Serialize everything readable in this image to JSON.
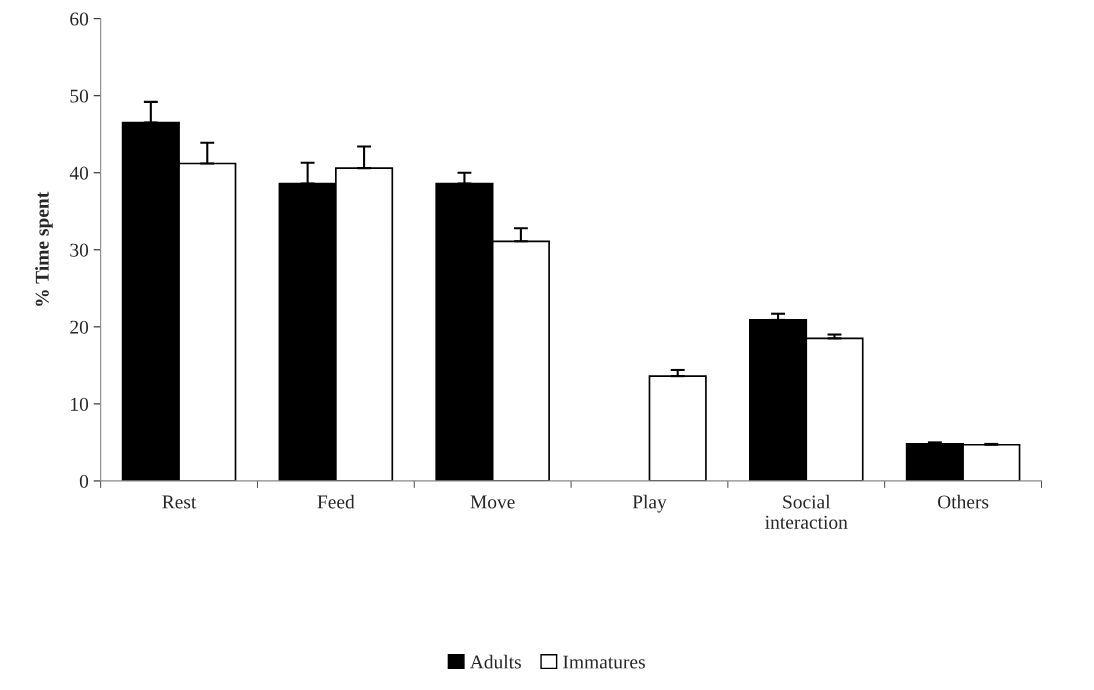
{
  "chart_data": {
    "type": "bar",
    "ylabel": "% Time spent",
    "categories": [
      "Rest",
      "Feed",
      "Move",
      "Play",
      "Social\ninteraction",
      "Others"
    ],
    "series": [
      {
        "name": "Adults",
        "color": "#000000",
        "values": [
          46.5,
          38.6,
          38.6,
          null,
          20.9,
          4.8
        ],
        "errors": [
          2.7,
          2.7,
          1.4,
          null,
          0.8,
          0.2
        ]
      },
      {
        "name": "Immatures",
        "color": "#ffffff",
        "values": [
          41.2,
          40.6,
          31.1,
          13.6,
          18.5,
          4.7
        ],
        "errors": [
          2.7,
          2.8,
          1.7,
          0.8,
          0.5,
          0.1
        ]
      }
    ],
    "ylim": [
      0,
      60
    ],
    "yticks": [
      0,
      10,
      20,
      30,
      40,
      50,
      60
    ],
    "grid": false,
    "legend": "bottom"
  }
}
